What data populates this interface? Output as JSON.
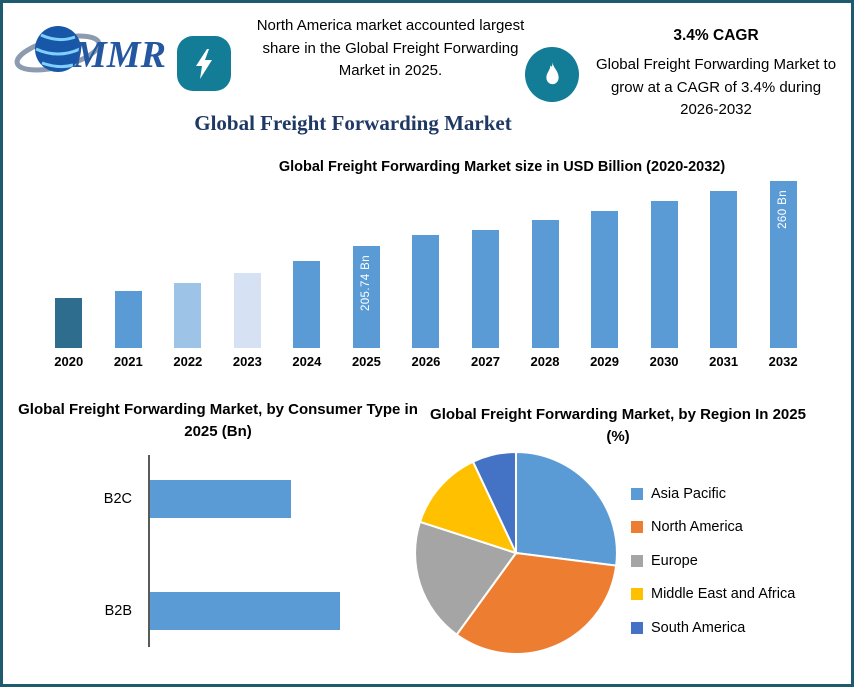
{
  "colors": {
    "border": "#1e5b6e",
    "accent_badge": "#137c97",
    "title": "#1f3864",
    "bar_default": "#5b9bd5",
    "axis": "#595959"
  },
  "header": {
    "logo_text": "MMR",
    "note_left": "North America market accounted largest share in the Global Freight Forwarding Market in 2025.",
    "cagr_heading": "3.4% CAGR",
    "note_right": "Global Freight Forwarding Market to grow at a CAGR of 3.4% during 2026-2032",
    "main_title": "Global Freight Forwarding Market"
  },
  "chart_data": [
    {
      "type": "bar",
      "title": "Global Freight Forwarding Market size in USD Billion (2020-2032)",
      "ylabel": "USD Billion",
      "axis_hidden": true,
      "categories": [
        "2020",
        "2021",
        "2022",
        "2023",
        "2024",
        "2025",
        "2026",
        "2027",
        "2028",
        "2029",
        "2030",
        "2031",
        "2032"
      ],
      "values_relative_height": [
        50,
        57,
        65,
        75,
        87,
        102,
        113,
        118,
        128,
        137,
        147,
        157,
        167
      ],
      "labeled_values": {
        "2025": "205.74 Bn",
        "2032": "260 Bn"
      },
      "bar_colors": [
        "#2f6d8e",
        "#5b9bd5",
        "#9dc3e6",
        "#d6e2f3",
        "#5b9bd5",
        "#5b9bd5",
        "#5b9bd5",
        "#5b9bd5",
        "#5b9bd5",
        "#5b9bd5",
        "#5b9bd5",
        "#5b9bd5",
        "#5b9bd5"
      ]
    },
    {
      "type": "bar",
      "orientation": "horizontal",
      "title": "Global Freight Forwarding Market, by Consumer Type in 2025 (Bn)",
      "categories": [
        "B2C",
        "B2B"
      ],
      "values_relative_length": [
        74,
        100
      ],
      "bar_color": "#5b9bd5"
    },
    {
      "type": "pie",
      "title": "Global Freight Forwarding Market, by Region In 2025 (%)",
      "legend_position": "right",
      "slices": [
        {
          "label": "Asia Pacific",
          "value": 27,
          "color": "#5b9bd5"
        },
        {
          "label": "North America",
          "value": 33,
          "color": "#ed7d31"
        },
        {
          "label": "Europe",
          "value": 20,
          "color": "#a5a5a5"
        },
        {
          "label": "Middle East and Africa",
          "value": 13,
          "color": "#ffc000"
        },
        {
          "label": "South America",
          "value": 7,
          "color": "#4472c4"
        }
      ]
    }
  ]
}
